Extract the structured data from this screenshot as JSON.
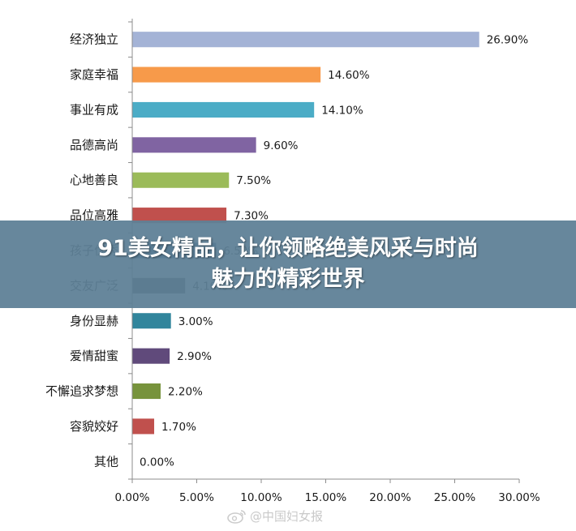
{
  "chart_data": {
    "type": "bar",
    "orientation": "horizontal",
    "categories": [
      "经济独立",
      "家庭幸福",
      "事业有成",
      "品德高尚",
      "心地善良",
      "品位高雅",
      "孩子优秀",
      "交友广泛",
      "身份显赫",
      "爱情甜蜜",
      "不懈追求梦想",
      "容貌姣好",
      "其他"
    ],
    "values": [
      26.9,
      14.6,
      14.1,
      9.6,
      7.5,
      7.3,
      6.5,
      4.1,
      3.0,
      2.9,
      2.2,
      1.7,
      0.0
    ],
    "value_labels": [
      "26.90%",
      "14.60%",
      "14.10%",
      "9.60%",
      "7.50%",
      "7.30%",
      "6.50%",
      "4.10%",
      "3.00%",
      "2.90%",
      "2.20%",
      "1.70%",
      "0.00%"
    ],
    "colors": [
      "#a4b3d6",
      "#f79a4a",
      "#4bacc6",
      "#8064a2",
      "#9bbb59",
      "#c0504d",
      "#1f497d",
      "#4d4d4d",
      "#31859c",
      "#604a7b",
      "#77933c",
      "#c0504d",
      "#4f81bd"
    ],
    "xlim": [
      0,
      30
    ],
    "x_ticks": [
      "0.00%",
      "5.00%",
      "10.00%",
      "15.00%",
      "20.00%",
      "25.00%",
      "30.00%"
    ],
    "title": "",
    "xlabel": "",
    "ylabel": "",
    "grid": false,
    "legend": "none"
  },
  "banner": {
    "line1": "91美女精品，让你领略绝美风采与时尚",
    "line2": "魅力的精彩世界"
  },
  "watermark": {
    "text": "@中国妇女报",
    "icon": "weibo-icon"
  }
}
